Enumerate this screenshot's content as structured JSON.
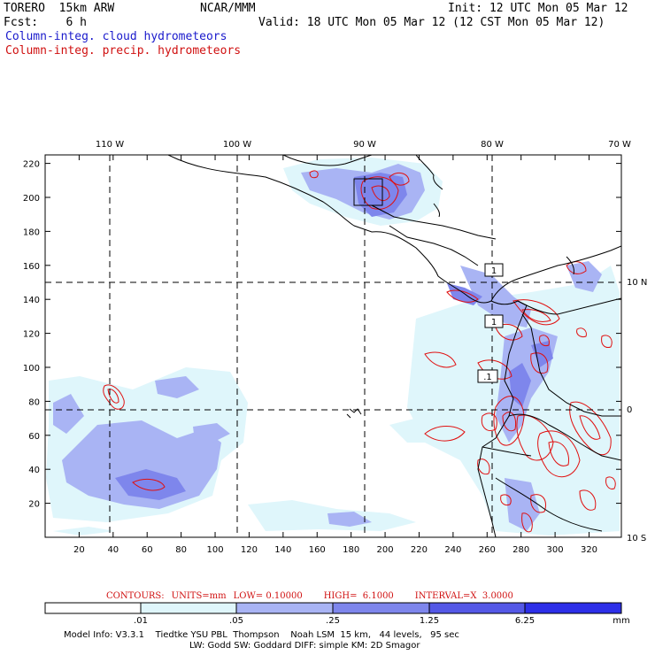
{
  "header": {
    "model": "TORERO  15km ARW",
    "org": "NCAR/MMM",
    "init": "Init: 12 UTC Mon 05 Mar 12",
    "fcst": "Fcst:    6 h",
    "valid": "Valid: 18 UTC Mon 05 Mar 12 (12 CST Mon 05 Mar 12)",
    "field_cloud": "Column-integ. cloud hydrometeors",
    "field_precip": "Column-integ. precip. hydrometeors"
  },
  "colors": {
    "cloud_label": "#1a1acc",
    "precip_label": "#d01010",
    "contour": "#e01010",
    "grid": "#000000"
  },
  "map": {
    "lon_labels": [
      "110 W",
      "100 W",
      "90 W",
      "80 W",
      "70 W"
    ],
    "lat_labels": [
      "10 N",
      "0",
      "10 S"
    ],
    "x_ticks": [
      "20",
      "40",
      "60",
      "80",
      "100",
      "120",
      "140",
      "160",
      "180",
      "200",
      "220",
      "240",
      "260",
      "280",
      "300",
      "320"
    ],
    "y_ticks": [
      "220",
      "200",
      "180",
      "160",
      "140",
      "120",
      "100",
      "80",
      "60",
      "40",
      "20"
    ],
    "station_labels": [
      "1",
      "1",
      ".1"
    ]
  },
  "contours": {
    "label": "CONTOURS:",
    "units": "UNITS=mm",
    "low": "LOW= 0.10000",
    "high": "HIGH=  6.1000",
    "interval": "INTERVAL=X  3.0000"
  },
  "colorbar": {
    "levels": [
      ".01",
      ".05",
      ".25",
      "1.25",
      "6.25"
    ],
    "unit": "mm",
    "colors": [
      "#ffffff",
      "#dff6fb",
      "#a9b4f4",
      "#7e86ec",
      "#5458e6",
      "#2d2fe8",
      "#1010f0"
    ]
  },
  "model_info": {
    "line1": "Model Info: V3.3.1    Tiedtke YSU PBL  Thompson    Noah LSM  15 km,   44 levels,   95 sec",
    "line2": "LW: Godd SW: Goddard DIFF: simple KM: 2D Smagor"
  }
}
